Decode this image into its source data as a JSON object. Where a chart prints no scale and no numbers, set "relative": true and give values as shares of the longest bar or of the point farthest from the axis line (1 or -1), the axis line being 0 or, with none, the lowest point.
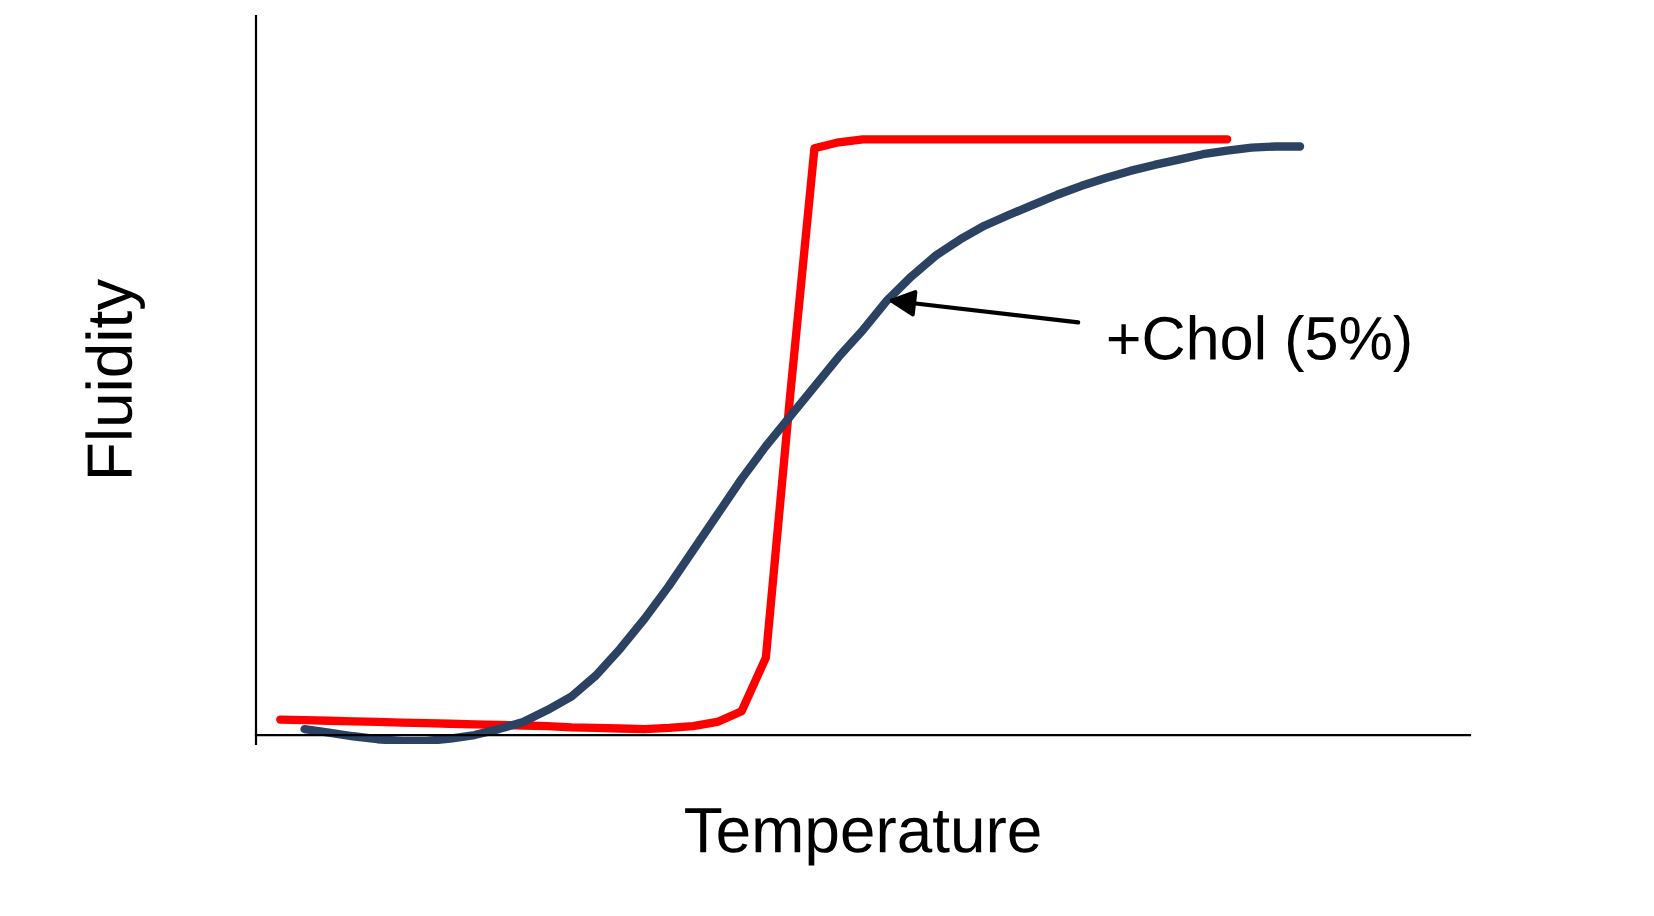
{
  "chart_data": {
    "type": "line",
    "relative": true,
    "xlabel": "Temperature",
    "ylabel": "Fluidity",
    "marker": "none",
    "line_style": "solid",
    "categories": [
      null,
      null,
      null,
      null,
      null,
      null,
      null,
      null,
      null,
      null,
      null,
      null,
      null,
      null,
      null,
      null,
      null,
      null,
      null,
      null,
      null,
      null,
      null,
      null,
      null,
      null,
      null,
      null,
      null,
      null,
      null,
      null,
      null,
      null,
      null,
      null,
      null,
      null,
      null,
      null,
      null,
      null,
      null
    ],
    "series": [
      {
        "color": "#ff0000",
        "values": [
          0.026,
          0.025,
          0.024,
          0.023,
          0.022,
          0.021,
          0.02,
          0.019,
          0.018,
          0.017,
          0.016,
          0.015,
          0.013,
          0.012,
          0.011,
          0.01,
          0.012,
          0.015,
          0.022,
          0.04,
          0.13,
          0.57,
          0.985,
          0.995,
          1,
          1,
          1,
          1,
          1,
          1,
          1,
          1,
          1,
          1,
          1,
          1,
          1,
          1,
          1,
          1,
          null,
          null,
          null
        ]
      },
      {
        "color": "#2b4263",
        "values": [
          null,
          0.01,
          0.004,
          -0.002,
          -0.007,
          -0.01,
          -0.01,
          -0.006,
          0.0,
          0.01,
          0.022,
          0.042,
          0.065,
          0.1,
          0.145,
          0.195,
          0.25,
          0.31,
          0.37,
          0.43,
          0.485,
          0.535,
          0.585,
          0.635,
          0.68,
          0.73,
          0.77,
          0.805,
          0.832,
          0.855,
          0.873,
          0.89,
          0.907,
          0.922,
          0.935,
          0.947,
          0.957,
          0.966,
          0.975,
          0.981,
          0.986,
          0.988,
          0.988
        ]
      }
    ],
    "annotations": [
      "+Chol (5%)"
    ]
  }
}
